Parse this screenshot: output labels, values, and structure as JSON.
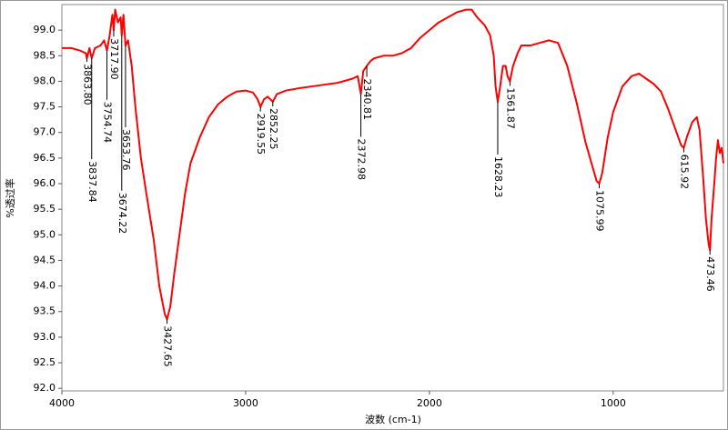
{
  "chart_data": {
    "type": "line",
    "y_label": "%透过率",
    "x_label": "波数 (cm-1)",
    "xlim": [
      4000,
      400
    ],
    "ylim": [
      91.95,
      99.5
    ],
    "xticks": [
      4000,
      3000,
      2000,
      1000
    ],
    "yticks": [
      {
        "value": 92,
        "label": "92.0"
      },
      92.5,
      {
        "value": 93,
        "label": "93.0"
      },
      93.5,
      {
        "value": 94,
        "label": "94.0"
      },
      94.5,
      {
        "value": 95,
        "label": "95.0"
      },
      95.5,
      {
        "value": 96,
        "label": "96.0"
      },
      96.5,
      {
        "value": 97,
        "label": "97.0"
      },
      97.5,
      {
        "value": 98,
        "label": "98.0"
      },
      98.5,
      {
        "value": 99,
        "label": "99.0"
      }
    ],
    "series": [
      {
        "color": "#ff0000",
        "x": [
          4000,
          3950,
          3900,
          3870,
          3863.8,
          3850,
          3837.84,
          3820,
          3790,
          3770,
          3754.74,
          3740,
          3725,
          3717.9,
          3710,
          3695,
          3680,
          3674.22,
          3665,
          3653.76,
          3640,
          3620,
          3600,
          3570,
          3540,
          3500,
          3470,
          3440,
          3427.65,
          3410,
          3390,
          3360,
          3330,
          3300,
          3250,
          3200,
          3150,
          3100,
          3050,
          3000,
          2960,
          2935,
          2919.55,
          2900,
          2880,
          2852.25,
          2830,
          2780,
          2700,
          2600,
          2500,
          2420,
          2390,
          2372.98,
          2360,
          2340.81,
          2320,
          2300,
          2250,
          2200,
          2150,
          2100,
          2050,
          2000,
          1950,
          1900,
          1850,
          1800,
          1770,
          1740,
          1700,
          1670,
          1650,
          1640,
          1628.23,
          1615,
          1600,
          1585,
          1575,
          1561.87,
          1545,
          1520,
          1500,
          1450,
          1400,
          1350,
          1300,
          1250,
          1200,
          1150,
          1110,
          1090,
          1075.99,
          1060,
          1030,
          1000,
          950,
          900,
          860,
          820,
          780,
          740,
          700,
          660,
          630,
          615.92,
          600,
          570,
          545,
          530,
          510,
          495,
          480,
          473.46,
          465,
          450,
          440,
          430,
          420,
          410,
          400
        ],
        "values": [
          98.65,
          98.65,
          98.6,
          98.55,
          98.45,
          98.65,
          98.45,
          98.65,
          98.7,
          98.8,
          98.6,
          98.9,
          99.3,
          99.0,
          99.4,
          99.15,
          99.25,
          98.9,
          99.3,
          98.7,
          98.8,
          98.3,
          97.5,
          96.5,
          95.8,
          94.9,
          94.0,
          93.45,
          93.35,
          93.6,
          94.2,
          95.0,
          95.8,
          96.4,
          96.9,
          97.3,
          97.55,
          97.7,
          97.8,
          97.82,
          97.78,
          97.65,
          97.5,
          97.65,
          97.7,
          97.6,
          97.75,
          97.82,
          97.87,
          97.92,
          97.97,
          98.05,
          98.1,
          97.75,
          98.2,
          98.3,
          98.4,
          98.45,
          98.5,
          98.5,
          98.55,
          98.65,
          98.85,
          99.0,
          99.15,
          99.25,
          99.35,
          99.4,
          99.4,
          99.25,
          99.1,
          98.9,
          98.5,
          97.9,
          97.6,
          97.9,
          98.3,
          98.3,
          98.1,
          98.0,
          98.3,
          98.55,
          98.7,
          98.7,
          98.75,
          98.8,
          98.75,
          98.3,
          97.6,
          96.8,
          96.3,
          96.05,
          96.0,
          96.2,
          96.9,
          97.4,
          97.9,
          98.1,
          98.15,
          98.05,
          97.95,
          97.8,
          97.45,
          97.05,
          96.75,
          96.7,
          96.9,
          97.2,
          97.3,
          97.05,
          96.1,
          95.3,
          94.8,
          94.7,
          95.3,
          96.0,
          96.5,
          96.85,
          96.6,
          96.7,
          96.4
        ]
      }
    ],
    "annotations": [
      {
        "x": 3863.8,
        "y": 98.45,
        "label": "3863.80"
      },
      {
        "x": 3837.84,
        "y": 98.45,
        "label": "3837.84"
      },
      {
        "x": 3754.74,
        "y": 98.6,
        "label": "3754.74"
      },
      {
        "x": 3717.9,
        "y": 99.0,
        "label": "3717.90"
      },
      {
        "x": 3674.22,
        "y": 98.9,
        "label": "3674.22"
      },
      {
        "x": 3653.76,
        "y": 98.7,
        "label": "3653.76"
      },
      {
        "x": 3427.65,
        "y": 93.35,
        "label": "3427.65"
      },
      {
        "x": 2919.55,
        "y": 97.5,
        "label": "2919.55"
      },
      {
        "x": 2852.25,
        "y": 97.6,
        "label": "2852.25"
      },
      {
        "x": 2372.98,
        "y": 97.75,
        "label": "2372.98"
      },
      {
        "x": 2340.81,
        "y": 98.3,
        "label": "2340.81"
      },
      {
        "x": 1628.23,
        "y": 97.6,
        "label": "1628.23"
      },
      {
        "x": 1561.87,
        "y": 98.0,
        "label": "1561.87"
      },
      {
        "x": 1075.99,
        "y": 96.0,
        "label": "1075.99"
      },
      {
        "x": 615.92,
        "y": 96.7,
        "label": "615.92"
      },
      {
        "x": 473.46,
        "y": 94.7,
        "label": "473.46"
      }
    ]
  }
}
